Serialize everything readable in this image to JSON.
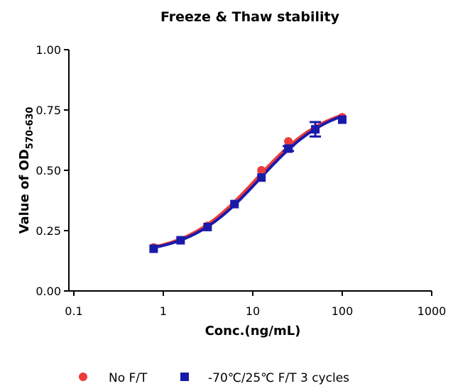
{
  "chart_data": {
    "type": "scatter",
    "title": "Freeze & Thaw stability",
    "xlabel": "Conc.(ng/mL)",
    "ylabel_main": "Value of OD",
    "ylabel_sub": "570-630",
    "xscale": "log",
    "xlim": [
      0.1,
      1000
    ],
    "ylim": [
      0,
      1.0
    ],
    "xticks": [
      0.1,
      1,
      10,
      100,
      1000
    ],
    "xtick_labels": [
      "0.1",
      "1",
      "10",
      "100",
      "1000"
    ],
    "yticks": [
      0,
      0.25,
      0.5,
      0.75,
      1.0
    ],
    "ytick_labels": [
      "0.00",
      "0.25",
      "0.50",
      "0.75",
      "1.00"
    ],
    "legend_position": "bottom",
    "series": [
      {
        "name": "No F/T",
        "color": "#ee3b3b",
        "marker": "circle",
        "x": [
          0.78,
          1.56,
          3.125,
          6.25,
          12.5,
          25,
          50,
          100
        ],
        "y": [
          0.18,
          0.21,
          0.27,
          0.36,
          0.5,
          0.62,
          0.67,
          0.72
        ],
        "fit": {
          "bottom": 0.15,
          "top": 0.78,
          "ec50": 11,
          "hill": 1.1
        }
      },
      {
        "name": "-70℃/25℃ F/T 3 cycles",
        "color": "#1a1aaa",
        "marker": "square",
        "x": [
          0.78,
          1.56,
          3.125,
          6.25,
          12.5,
          25,
          50,
          100
        ],
        "y": [
          0.175,
          0.21,
          0.265,
          0.36,
          0.47,
          0.59,
          0.67,
          0.71
        ],
        "err": [
          0,
          0,
          0,
          0,
          0,
          0.01,
          0.03,
          0
        ],
        "fit": {
          "bottom": 0.15,
          "top": 0.78,
          "ec50": 12,
          "hill": 1.1
        }
      }
    ]
  }
}
